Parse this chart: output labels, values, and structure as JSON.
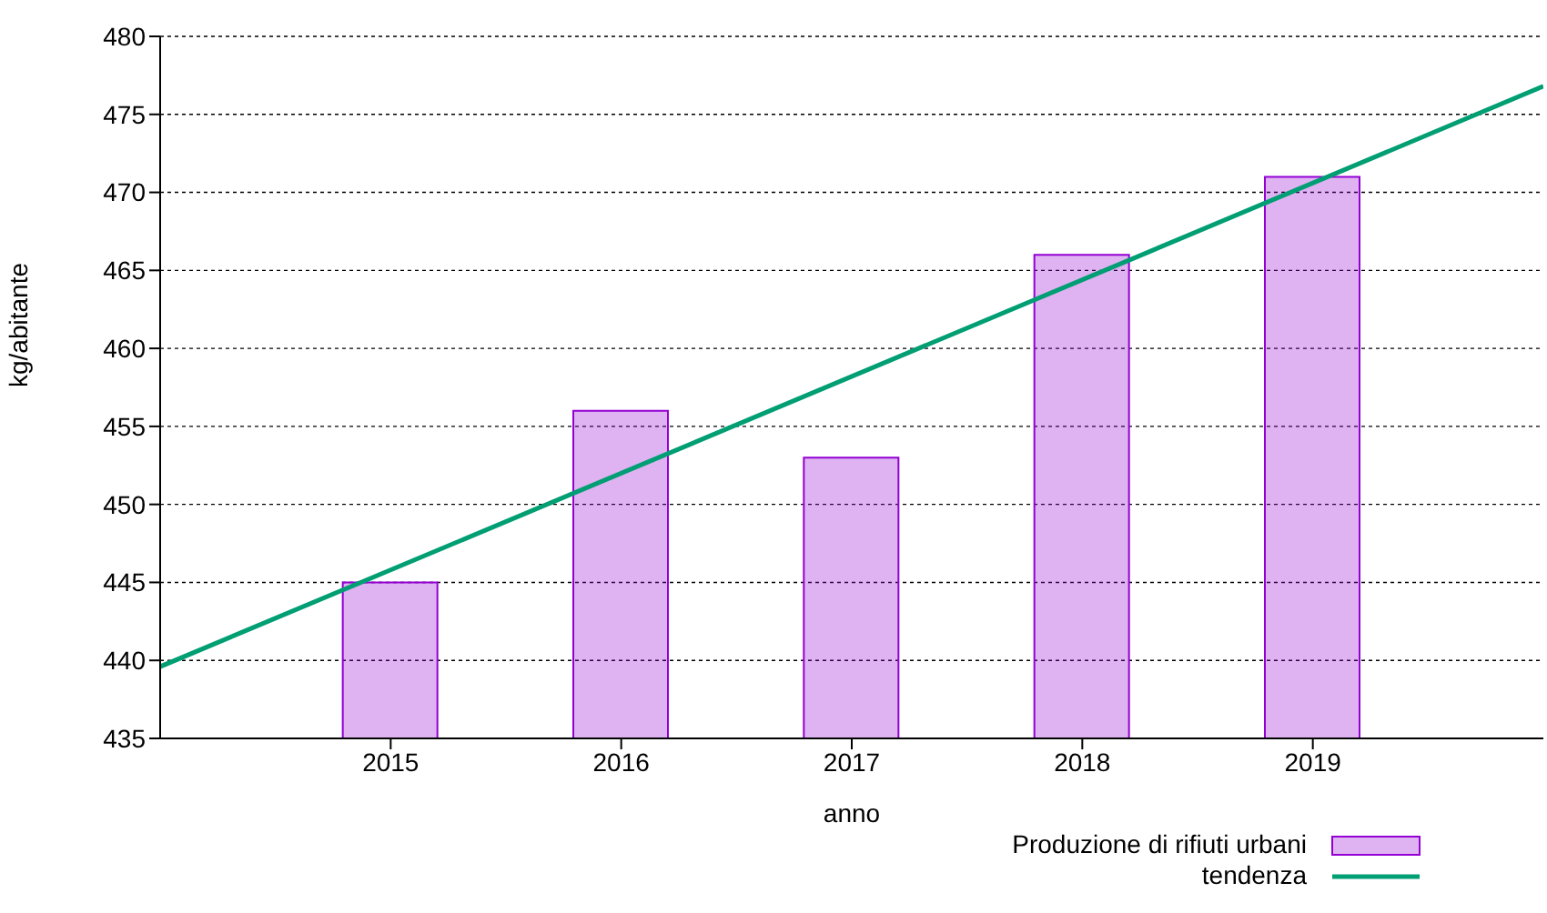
{
  "chart_data": {
    "type": "bar",
    "xlabel": "anno",
    "ylabel": "kg/abitante",
    "x": [
      2015,
      2016,
      2017,
      2018,
      2019
    ],
    "series": [
      {
        "name": "Produzione di rifiuti urbani",
        "color": "#9400d3",
        "values": [
          445,
          456,
          453,
          466,
          471
        ]
      },
      {
        "name": "tendenza",
        "type": "line",
        "color": "#009e73",
        "x": [
          2014,
          2020
        ],
        "values": [
          439.6,
          476.8
        ]
      }
    ],
    "xlim": [
      2014,
      2020
    ],
    "xticks": [
      2015,
      2016,
      2017,
      2018,
      2019
    ],
    "ylim": [
      435,
      480
    ],
    "yticks": [
      435,
      440,
      445,
      450,
      455,
      460,
      465,
      470,
      475,
      480
    ],
    "grid": "y",
    "legend": "bottom right"
  }
}
